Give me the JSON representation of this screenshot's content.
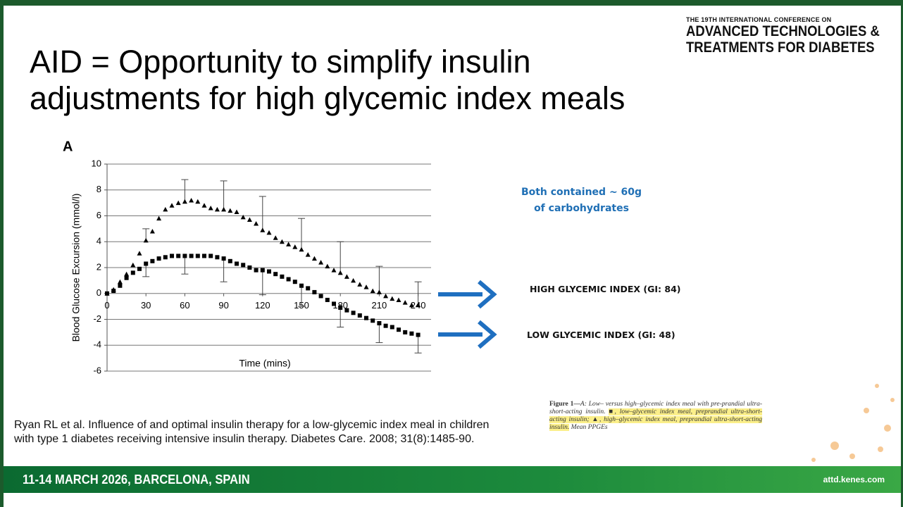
{
  "slide": {
    "title": [
      "AID = Opportunity to simplify insulin",
      "adjustments for high glycemic index meals"
    ],
    "logo": {
      "line1": "THE 19TH INTERNATIONAL CONFERENCE ON",
      "line2": "ADVANCED TECHNOLOGIES &",
      "line3": "TREATMENTS FOR DIABETES"
    },
    "reference": [
      "Ryan RL et al. Influence of and optimal insulin therapy for a low-glycemic index meal in children",
      "with type 1 diabetes receiving intensive insulin therapy. Diabetes Care. 2008; 31(8):1485-90."
    ],
    "note": "Both contained ~ 60g of carbohydrates",
    "caption": [
      "Figure 1—",
      "A: Low– versus high–glycemic index meal with pre-prandial ultra-short-acting insulin. ",
      "■, low–glycemic index meal, preprandial ultra-short-acting insulin; ▲, high–glycemic index meal, preprandial ultra-short-acting insulin.",
      " Mean PPGEs"
    ],
    "footer": {
      "dates": "11-14 MARCH 2026, BARCELONA, SPAIN",
      "url": "attd.kenes.com"
    }
  },
  "chart_data": {
    "type": "scatter",
    "panel": "A",
    "x_label": "Time (mins)",
    "y_label": "Blood Glucose Excursion (mmol/l)",
    "xlim": [
      0,
      250
    ],
    "ylim": [
      -6,
      10
    ],
    "xticks": [
      0,
      30,
      60,
      90,
      120,
      150,
      180,
      210,
      240
    ],
    "yticks": [
      10,
      8,
      6,
      4,
      2,
      0,
      -2,
      -4,
      -6
    ],
    "grid": true,
    "x": [
      0,
      5,
      10,
      15,
      20,
      25,
      30,
      35,
      40,
      45,
      50,
      55,
      60,
      65,
      70,
      75,
      80,
      85,
      90,
      95,
      100,
      105,
      110,
      115,
      120,
      125,
      130,
      135,
      140,
      145,
      150,
      155,
      160,
      165,
      170,
      175,
      180,
      185,
      190,
      195,
      200,
      205,
      210,
      215,
      220,
      225,
      230,
      235,
      240
    ],
    "series": [
      {
        "name": "HIGH GLYCEMIC INDEX (GI: 84)",
        "color": "#000000",
        "marker": "triangle",
        "error_direction": "up",
        "values": [
          0,
          0.3,
          0.9,
          1.5,
          2.2,
          3.1,
          4.1,
          4.8,
          5.8,
          6.5,
          6.8,
          7.0,
          7.1,
          7.2,
          7.1,
          6.8,
          6.6,
          6.5,
          6.5,
          6.4,
          6.3,
          5.9,
          5.7,
          5.4,
          4.9,
          4.7,
          4.3,
          4.0,
          3.8,
          3.6,
          3.4,
          3.0,
          2.7,
          2.4,
          2.1,
          1.8,
          1.6,
          1.3,
          1.0,
          0.7,
          0.5,
          0.2,
          0.1,
          -0.2,
          -0.4,
          -0.5,
          -0.7,
          -0.9,
          -0.9
        ],
        "error_x": [
          30,
          60,
          90,
          120,
          150,
          180,
          210,
          240
        ],
        "errors": [
          0.9,
          1.7,
          2.2,
          2.6,
          2.4,
          2.4,
          2.0,
          1.8
        ]
      },
      {
        "name": "LOW GLYCEMIC INDEX (GI: 48)",
        "color": "#000000",
        "marker": "square",
        "error_direction": "down",
        "values": [
          0,
          0.2,
          0.6,
          1.2,
          1.6,
          1.9,
          2.3,
          2.5,
          2.7,
          2.8,
          2.9,
          2.9,
          2.9,
          2.9,
          2.9,
          2.9,
          2.9,
          2.8,
          2.7,
          2.5,
          2.3,
          2.2,
          2.0,
          1.8,
          1.8,
          1.7,
          1.5,
          1.3,
          1.1,
          0.9,
          0.6,
          0.4,
          0.1,
          -0.2,
          -0.5,
          -0.8,
          -1.1,
          -1.3,
          -1.5,
          -1.7,
          -1.9,
          -2.1,
          -2.3,
          -2.5,
          -2.6,
          -2.8,
          -3.0,
          -3.1,
          -3.2
        ],
        "error_x": [
          30,
          60,
          90,
          120,
          150,
          180,
          210,
          240
        ],
        "errors": [
          1.0,
          1.4,
          1.8,
          1.9,
          1.6,
          1.5,
          1.5,
          1.4
        ]
      }
    ]
  }
}
